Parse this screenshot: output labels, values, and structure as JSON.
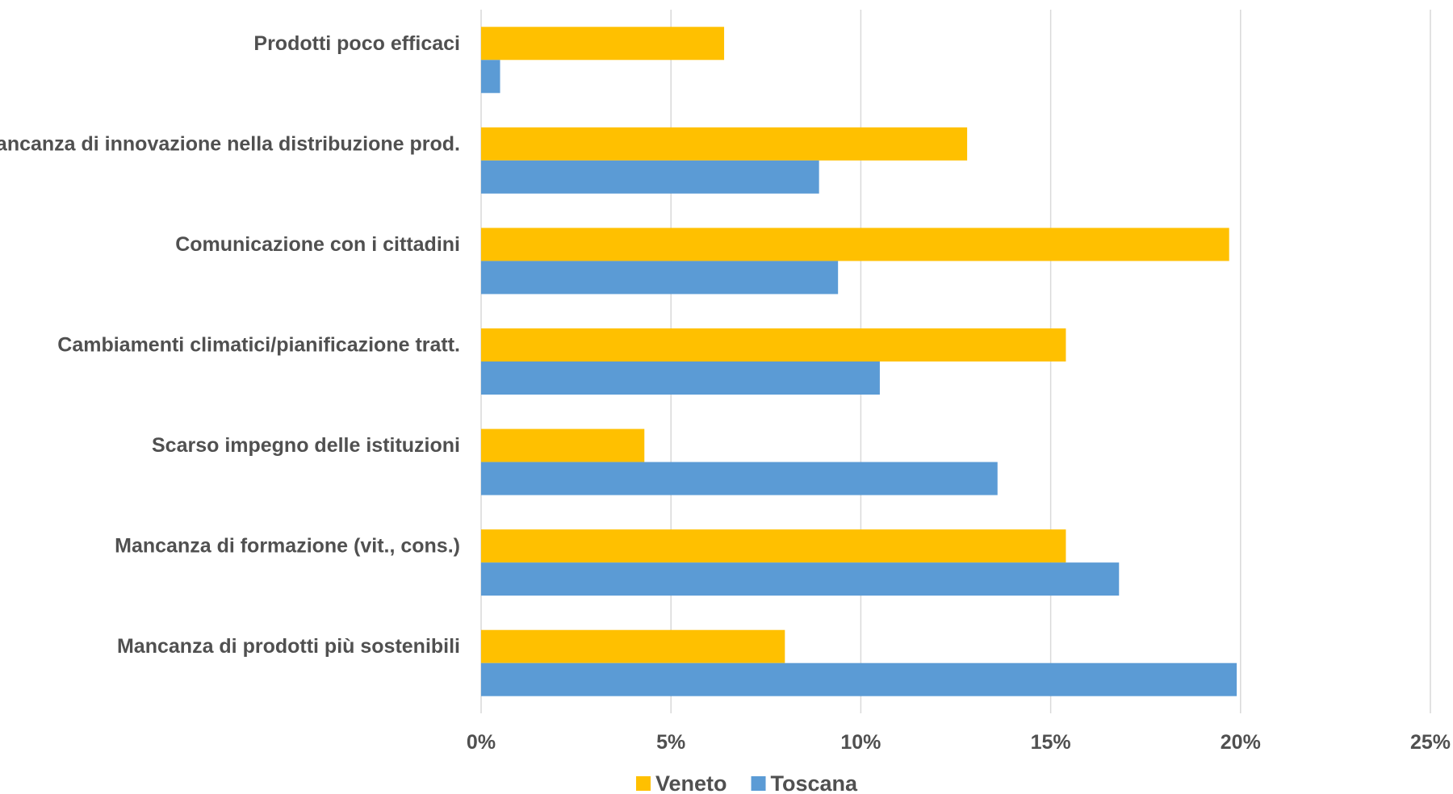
{
  "chart_data": {
    "type": "bar",
    "orientation": "horizontal",
    "categories": [
      "Prodotti poco efficaci",
      "Mancanza di innovazione nella distribuzione prod.",
      "Comunicazione con i cittadini",
      "Cambiamenti climatici/pianificazione tratt.",
      "Scarso impegno delle istituzioni",
      "Mancanza di formazione (vit., cons.)",
      "Mancanza di prodotti più sostenibili"
    ],
    "series": [
      {
        "name": "Veneto",
        "color": "#ffc000",
        "values": [
          6.4,
          12.8,
          19.7,
          15.4,
          4.3,
          15.4,
          8.0
        ]
      },
      {
        "name": "Toscana",
        "color": "#5b9bd5",
        "values": [
          0.5,
          8.9,
          9.4,
          10.5,
          13.6,
          16.8,
          19.9
        ]
      }
    ],
    "xlim": [
      0,
      25
    ],
    "xticks": [
      0,
      5,
      10,
      15,
      20,
      25
    ],
    "xtick_labels": [
      "0%",
      "5%",
      "10%",
      "15%",
      "20%",
      "25%"
    ],
    "grid": true,
    "legend_position": "bottom"
  }
}
